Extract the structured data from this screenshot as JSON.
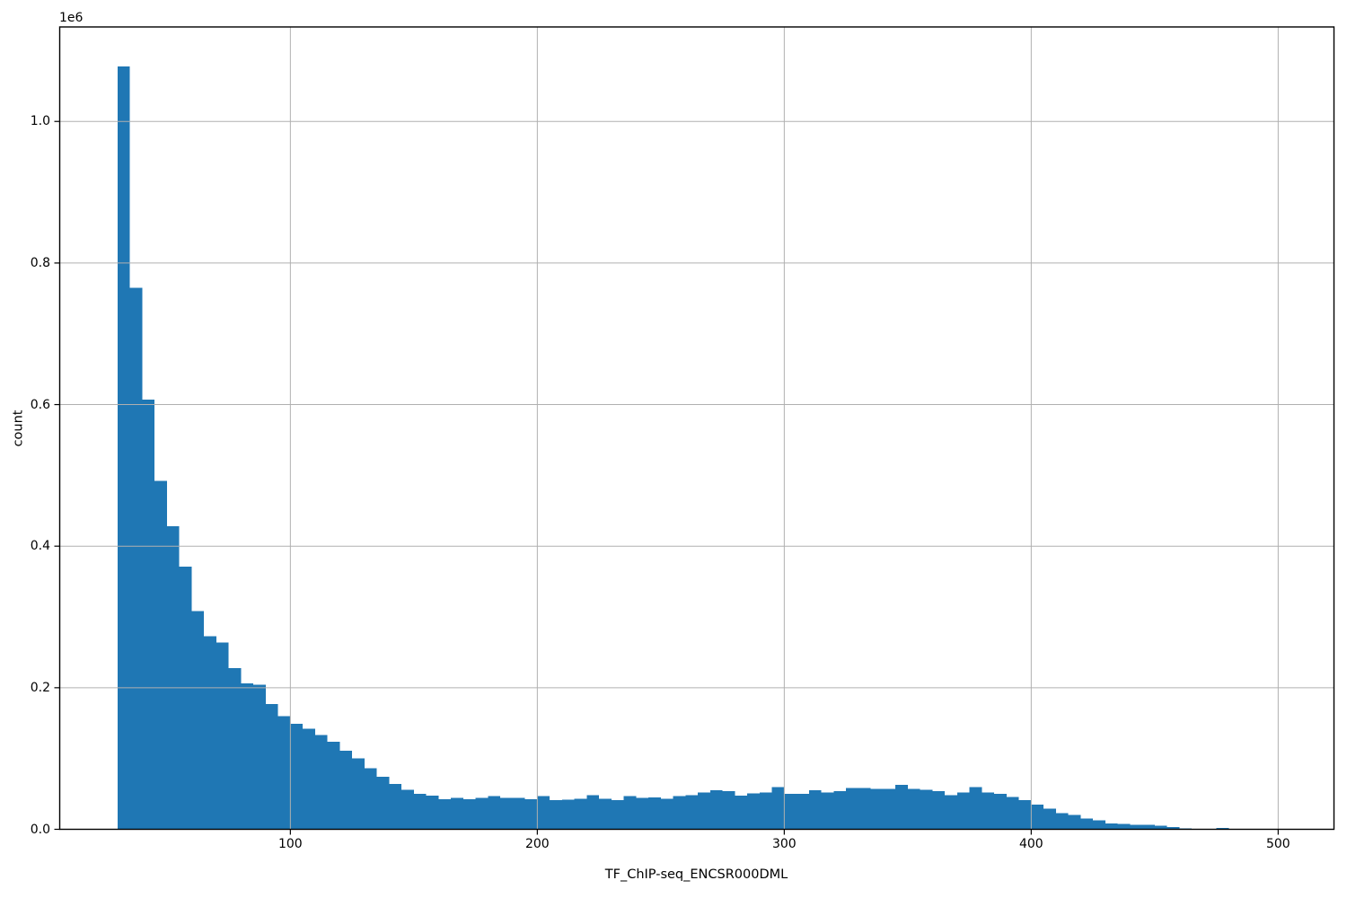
{
  "chart_data": {
    "type": "bar",
    "subtype": "histogram",
    "xlabel": "TF_ChIP-seq_ENCSR000DML",
    "ylabel": "count",
    "y_offset_text": "1e6",
    "bar_color": "#1f77b4",
    "grid_color": "#b0b0b0",
    "axis_color": "#000000",
    "grid": true,
    "legend": false,
    "xlim": [
      6.6,
      522.6
    ],
    "ylim": [
      0,
      1133500
    ],
    "x_ticks": [
      {
        "label": "100",
        "value": 100
      },
      {
        "label": "200",
        "value": 200
      },
      {
        "label": "300",
        "value": 300
      },
      {
        "label": "400",
        "value": 400
      },
      {
        "label": "500",
        "value": 500
      }
    ],
    "y_ticks": [
      {
        "label": "0.0",
        "value": 0
      },
      {
        "label": "0.2",
        "value": 200000
      },
      {
        "label": "0.4",
        "value": 400000
      },
      {
        "label": "0.6",
        "value": 600000
      },
      {
        "label": "0.8",
        "value": 800000
      },
      {
        "label": "1.0",
        "value": 1000000
      }
    ],
    "bin_start": 30,
    "bin_width": 5,
    "bin_counts": [
      1078000,
      765000,
      607000,
      492000,
      428000,
      371000,
      308000,
      273000,
      264000,
      228000,
      206000,
      204000,
      177000,
      160000,
      149000,
      142000,
      133000,
      124000,
      111000,
      100000,
      86000,
      74000,
      64000,
      56000,
      50000,
      47600,
      42500,
      44200,
      42500,
      44200,
      46700,
      44200,
      44700,
      42500,
      46700,
      41300,
      42100,
      43400,
      48500,
      43400,
      41300,
      46700,
      44700,
      45100,
      43400,
      46700,
      48500,
      51800,
      55200,
      54000,
      47600,
      51000,
      51800,
      59400,
      49800,
      49800,
      55200,
      52000,
      54000,
      58100,
      58100,
      56900,
      56900,
      62500,
      56900,
      56100,
      54000,
      48500,
      51800,
      59400,
      51800,
      49800,
      45600,
      41000,
      35000,
      29500,
      23100,
      20100,
      15000,
      12400,
      8300,
      7500,
      6600,
      6600,
      4800,
      3200,
      1500,
      800,
      0,
      1800,
      0
    ]
  }
}
